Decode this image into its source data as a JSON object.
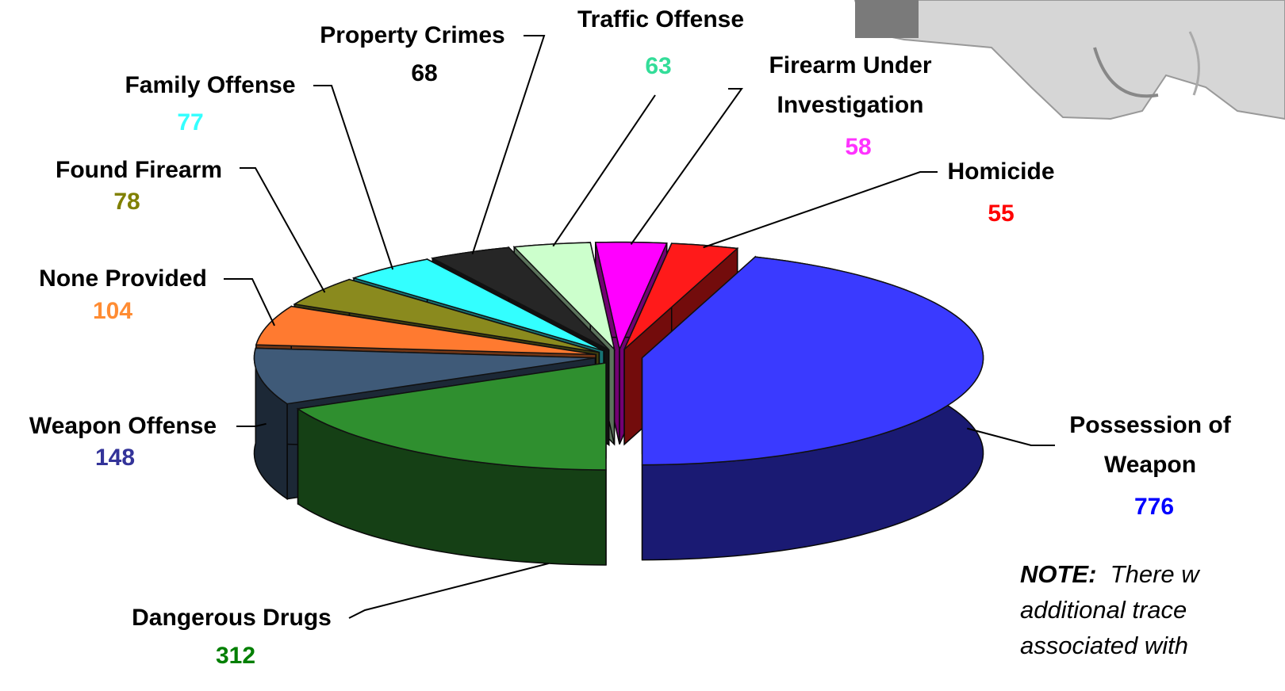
{
  "chart_data": {
    "type": "pie",
    "categories": [
      "Possession of Weapon",
      "Dangerous Drugs",
      "Weapon Offense",
      "None Provided",
      "Found Firearm",
      "Family Offense",
      "Property Crimes",
      "Traffic Offense",
      "Firearm Under Investigation",
      "Homicide"
    ],
    "values": [
      776,
      312,
      148,
      104,
      78,
      77,
      68,
      63,
      58,
      55
    ],
    "colors": [
      "#3a3aff",
      "#2f8f2f",
      "#3f5a78",
      "#ff7a30",
      "#8a8a1e",
      "#33ffff",
      "#262626",
      "#ccffcc",
      "#ff00ff",
      "#ff1a1a"
    ],
    "value_label_colors": [
      "#0000ff",
      "#007f00",
      "#333399",
      "#ff8c33",
      "#808000",
      "#33ffff",
      "#000000",
      "#33dd99",
      "#ff33ff",
      "#ff0000"
    ],
    "note": {
      "label": "NOTE:",
      "lines": [
        "There w",
        "additional trace",
        "associated with"
      ]
    }
  }
}
